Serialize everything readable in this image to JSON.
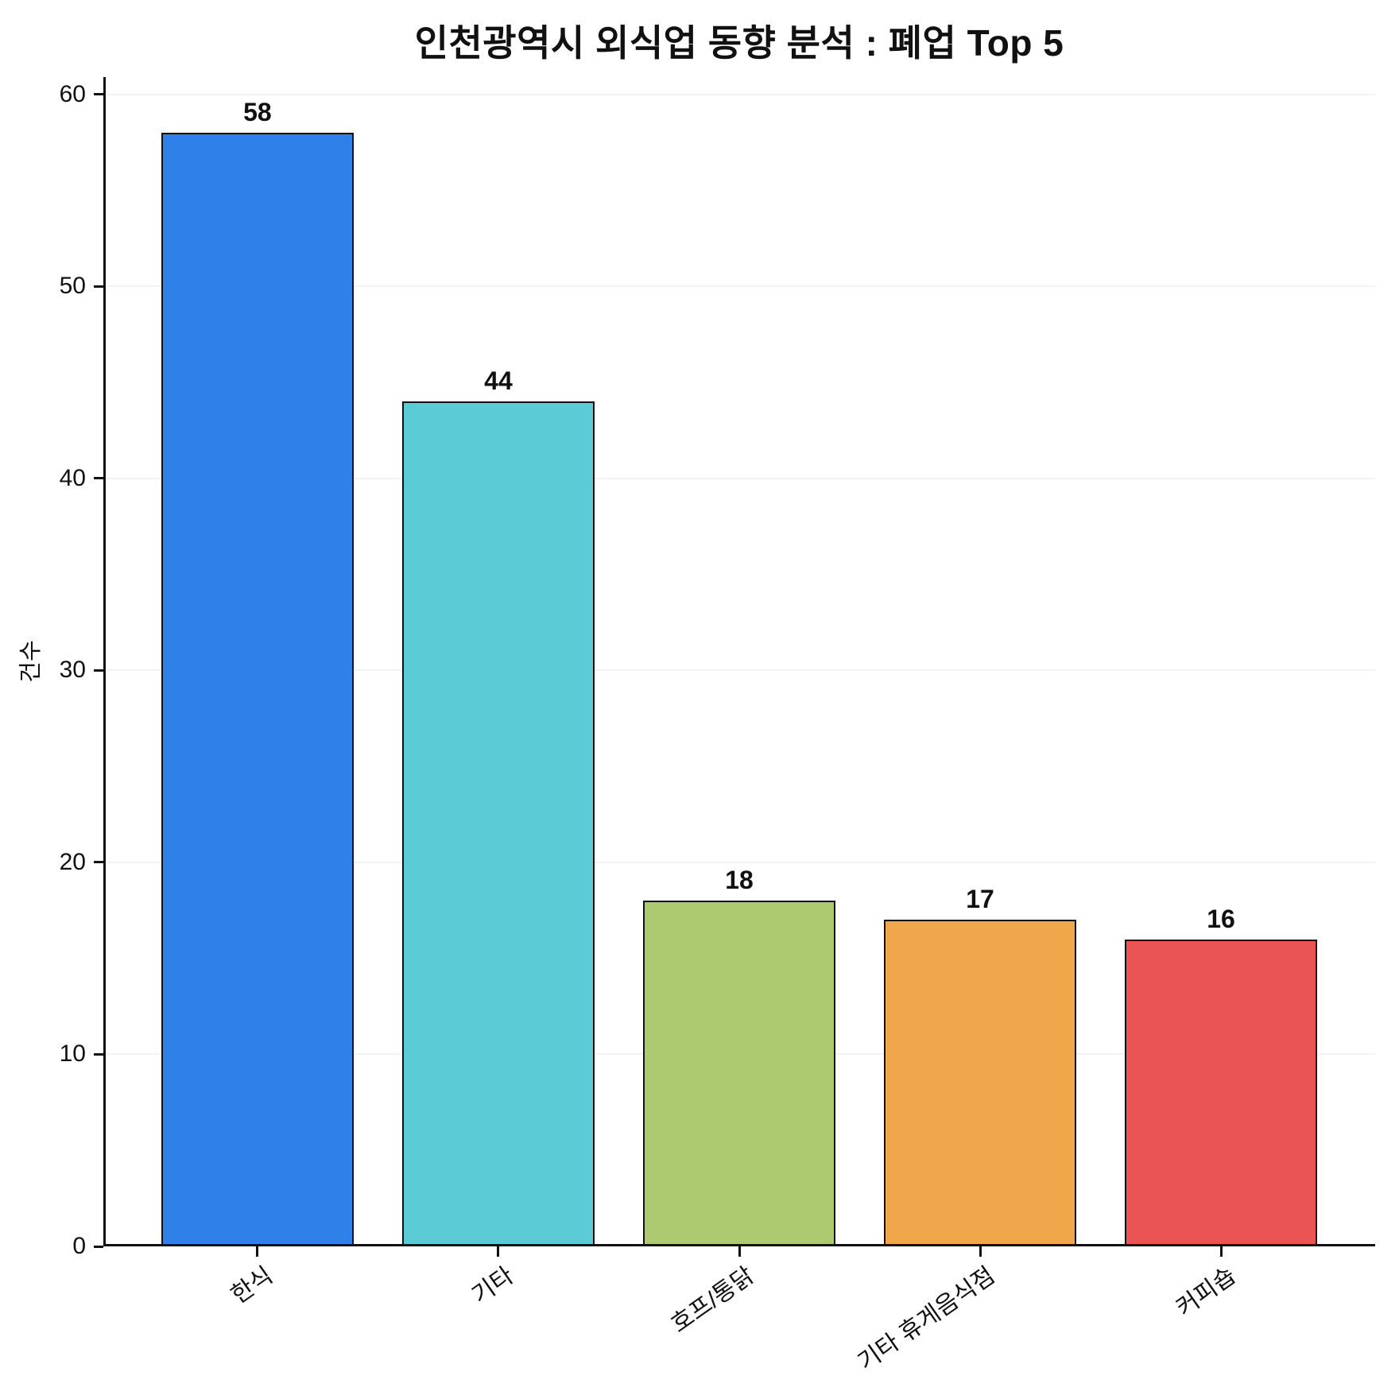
{
  "chart_data": {
    "type": "bar",
    "title": "인천광역시 외식업 동향 분석 : 폐업 Top 5",
    "ylabel": "건수",
    "xlabel": "",
    "categories": [
      "한식",
      "기타",
      "호프/통닭",
      "기타 휴게음식점",
      "커피숍"
    ],
    "values": [
      58,
      44,
      18,
      17,
      16
    ],
    "bar_colors": [
      "#2F80E8",
      "#5BCBD5",
      "#ADCA70",
      "#F0A64A",
      "#EA5455"
    ],
    "bar_edge_color": "#111111",
    "value_labels": [
      "58",
      "44",
      "18",
      "17",
      "16"
    ],
    "yticks": [
      0,
      10,
      20,
      30,
      40,
      50,
      60
    ],
    "ytick_labels": [
      "0",
      "10",
      "20",
      "30",
      "40",
      "50",
      "60"
    ],
    "ylim": [
      0,
      60.9
    ],
    "grid": {
      "horizontal": true,
      "color": "#f3f3f3"
    },
    "legend_position": "none",
    "xtick_rotation_deg": 35,
    "background_color": "#ffffff",
    "text_color": "#111111"
  }
}
